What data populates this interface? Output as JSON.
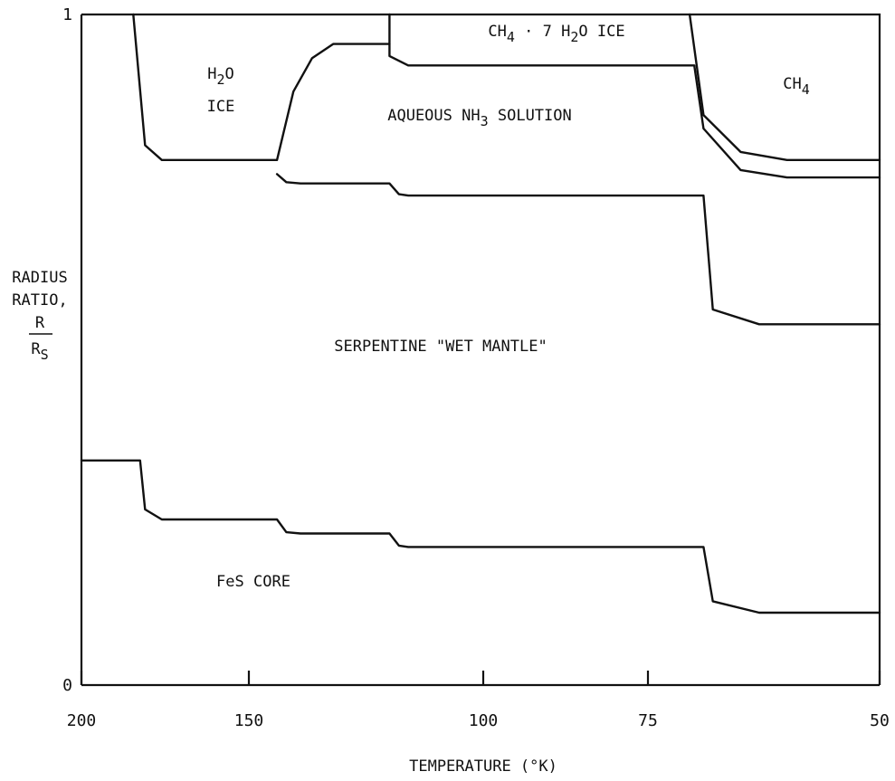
{
  "chart_data": {
    "type": "area",
    "xlabel": "TEMPERATURE (°K)",
    "ylabel_lines": [
      "RADIUS",
      "RATIO,"
    ],
    "ylabel_fraction": {
      "numerator": "R",
      "denominator": "R",
      "denominator_sub": "S"
    },
    "x_ticks": [
      {
        "value": 200,
        "label": "200"
      },
      {
        "value": 150,
        "label": "150"
      },
      {
        "value": 100,
        "label": "100"
      },
      {
        "value": 75,
        "label": "75"
      },
      {
        "value": 50,
        "label": "50"
      }
    ],
    "y_ticks": [
      {
        "value": 0,
        "label": "0"
      },
      {
        "value": 1,
        "label": "1"
      }
    ],
    "ylim": [
      0,
      1
    ],
    "grid": false,
    "regions": [
      {
        "name": "FeS CORE",
        "main": "FeS CORE",
        "sub": "",
        "tail": ""
      },
      {
        "name": "SERPENTINE \"WET MANTLE\"",
        "main": "SERPENTINE \"WET MANTLE\"",
        "sub": "",
        "tail": ""
      },
      {
        "name": "H2O ICE",
        "main": "H",
        "sub": "2",
        "tail": "O",
        "line2": "ICE"
      },
      {
        "name": "AQUEOUS NH3 SOLUTION",
        "main": "AQUEOUS NH",
        "sub": "3",
        "tail": " SOLUTION"
      },
      {
        "name": "CH4 · 7 H2O ICE",
        "main": "CH",
        "sub": "4",
        "mid": " · 7 H",
        "sub2": "2",
        "tail": "O ICE"
      },
      {
        "name": "CH4",
        "main": "CH",
        "sub": "4",
        "tail": ""
      }
    ],
    "boundaries": [
      {
        "name": "core-boundary",
        "points": [
          [
            200,
            0.335
          ],
          [
            182.5,
            0.335
          ],
          [
            181,
            0.262
          ],
          [
            176,
            0.247
          ],
          [
            144,
            0.247
          ],
          [
            142,
            0.228
          ],
          [
            139,
            0.226
          ],
          [
            120,
            0.226
          ],
          [
            118,
            0.208
          ],
          [
            116,
            0.206
          ],
          [
            69,
            0.206
          ],
          [
            68,
            0.125
          ],
          [
            63,
            0.108
          ],
          [
            50,
            0.108
          ]
        ]
      },
      {
        "name": "mantle-boundary",
        "points": [
          [
            144,
            0.762
          ],
          [
            142,
            0.75
          ],
          [
            139,
            0.748
          ],
          [
            120,
            0.748
          ],
          [
            118,
            0.732
          ],
          [
            116,
            0.73
          ],
          [
            69,
            0.73
          ],
          [
            68,
            0.56
          ],
          [
            63,
            0.538
          ],
          [
            50,
            0.538
          ]
        ]
      },
      {
        "name": "h2o-ice-boundary",
        "points": [
          [
            184.5,
            1.0
          ],
          [
            181,
            0.805
          ],
          [
            176,
            0.783
          ],
          [
            144,
            0.783
          ],
          [
            140.5,
            0.885
          ],
          [
            136.5,
            0.935
          ],
          [
            132,
            0.956
          ],
          [
            120,
            0.956
          ],
          [
            120,
            0.938
          ],
          [
            116,
            0.924
          ],
          [
            70,
            0.924
          ],
          [
            69,
            0.83
          ],
          [
            65,
            0.768
          ],
          [
            60,
            0.757
          ],
          [
            50,
            0.757
          ]
        ]
      },
      {
        "name": "clathrate-boundary",
        "points": [
          [
            120,
            1.0
          ],
          [
            120,
            0.956
          ]
        ]
      },
      {
        "name": "ch4-boundary",
        "points": [
          [
            70.5,
            1.0
          ],
          [
            69,
            0.85
          ],
          [
            65,
            0.795
          ],
          [
            60,
            0.783
          ],
          [
            50,
            0.783
          ]
        ]
      }
    ]
  }
}
